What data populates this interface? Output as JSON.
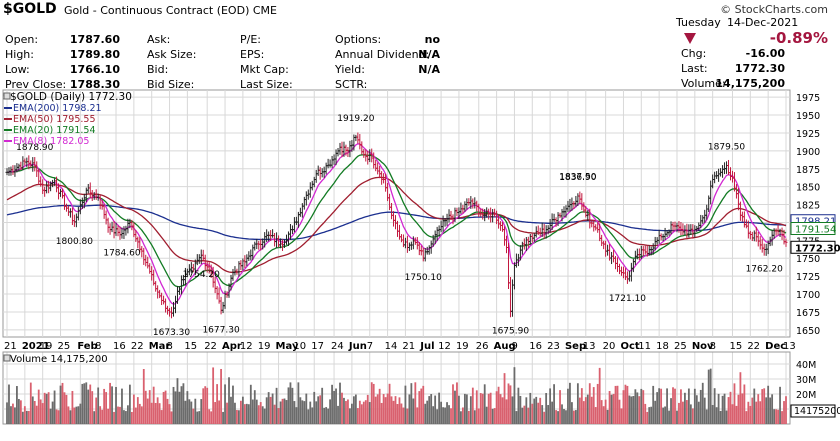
{
  "header": {
    "symbol": "$GOLD",
    "description": "Gold - Continuous Contract (EOD)",
    "exchange": "CME",
    "logo": "© StockCharts.com",
    "date_day": "Tuesday",
    "date": "14-Dec-2021",
    "change_pct": "-0.89%",
    "rows": [
      {
        "k1": "Open:",
        "v1": "1787.60",
        "k2": "Ask:",
        "v2": "",
        "k3": "P/E:",
        "v3": "",
        "k4": "Options:",
        "v4": "no",
        "k5": "Chg:",
        "v5": "-16.00"
      },
      {
        "k1": "High:",
        "v1": "1789.80",
        "k2": "Ask Size:",
        "v2": "",
        "k3": "EPS:",
        "v3": "",
        "k4": "Annual Dividend:",
        "v4": "N/A",
        "k5": "Last:",
        "v5": "1772.30"
      },
      {
        "k1": "Low:",
        "v1": "1766.10",
        "k2": "Bid:",
        "v2": "",
        "k3": "Mkt Cap:",
        "v3": "",
        "k4": "Yield:",
        "v4": "N/A",
        "k5": "Volume:",
        "v5": "14,175,200"
      },
      {
        "k1": "Prev Close:",
        "v1": "1788.30",
        "k2": "Bid Size:",
        "v2": "",
        "k3": "Last Size:",
        "v3": "",
        "k4": "SCTR:",
        "v4": "",
        "k5": "",
        "v5": ""
      }
    ]
  },
  "colors": {
    "up": "#222222",
    "down": "#c2173d",
    "ema200": "#1b2f8f",
    "ema50": "#a01e2f",
    "ema20": "#127b23",
    "ema8": "#d228d2",
    "grid": "#d8d8d8",
    "vol_up": "#6b6b6b",
    "vol_down": "#d9606e"
  },
  "chart_data": {
    "type": "line",
    "title": "$GOLD (Daily) 1772.30",
    "legend": [
      {
        "name": "EMA(200) 1798.21",
        "color": "#1b2f8f"
      },
      {
        "name": "EMA(50) 1795.55",
        "color": "#a01e2f"
      },
      {
        "name": "EMA(20) 1791.54",
        "color": "#127b23"
      },
      {
        "name": "EMA(8) 1782.05",
        "color": "#d228d2"
      }
    ],
    "y_ticks": [
      1650,
      1675,
      1700,
      1725,
      1750,
      1775,
      1800,
      1825,
      1850,
      1875,
      1900,
      1925,
      1950,
      1975
    ],
    "ylim": [
      1640,
      1985
    ],
    "x_ticks": [
      "21",
      "2021",
      "19",
      "25",
      "Feb",
      "8",
      "16",
      "22",
      "Mar",
      "8",
      "15",
      "22",
      "Apr",
      "12",
      "19",
      "May",
      "10",
      "17",
      "24",
      "Jun",
      "7",
      "14",
      "21",
      "Jul",
      "12",
      "19",
      "26",
      "Aug",
      "9",
      "16",
      "23",
      "Sep",
      "13",
      "20",
      "Oct",
      "11",
      "18",
      "25",
      "Nov",
      "8",
      "15",
      "22",
      "Dec",
      "13"
    ],
    "price_labels": [
      {
        "text": "1878.90",
        "value": 1878.9
      },
      {
        "text": "1800.80",
        "value": 1800.8
      },
      {
        "text": "1784.60",
        "value": 1784.6
      },
      {
        "text": "1754.20",
        "value": 1754.2
      },
      {
        "text": "1673.30",
        "value": 1673.3
      },
      {
        "text": "1677.30",
        "value": 1677.3
      },
      {
        "text": "1919.20",
        "value": 1919.2
      },
      {
        "text": "1750.10",
        "value": 1750.1
      },
      {
        "text": "1837.50",
        "value": 1837.5
      },
      {
        "text": "1675.90",
        "value": 1675.9
      },
      {
        "text": "1836.90",
        "value": 1836.9
      },
      {
        "text": "1721.10",
        "value": 1721.1
      },
      {
        "text": "1879.50",
        "value": 1879.5
      },
      {
        "text": "1762.20",
        "value": 1762.2
      }
    ],
    "right_labels": [
      {
        "text": "1798.21",
        "value": 1798.21,
        "color": "#1b2f8f"
      },
      {
        "text": "1791.54",
        "value": 1791.54,
        "color": "#127b23"
      },
      {
        "text": "1772.30",
        "value": 1772.3,
        "color": "#000000"
      }
    ],
    "close_anchors": [
      {
        "x": 0,
        "y": 1870
      },
      {
        "x": 10,
        "y": 1885
      },
      {
        "x": 14,
        "y": 1878.9
      },
      {
        "x": 18,
        "y": 1845
      },
      {
        "x": 24,
        "y": 1858
      },
      {
        "x": 30,
        "y": 1820
      },
      {
        "x": 34,
        "y": 1800.8
      },
      {
        "x": 40,
        "y": 1845
      },
      {
        "x": 46,
        "y": 1835
      },
      {
        "x": 52,
        "y": 1790
      },
      {
        "x": 58,
        "y": 1784.6
      },
      {
        "x": 62,
        "y": 1800
      },
      {
        "x": 68,
        "y": 1760
      },
      {
        "x": 74,
        "y": 1715
      },
      {
        "x": 80,
        "y": 1680
      },
      {
        "x": 83,
        "y": 1673.3
      },
      {
        "x": 88,
        "y": 1720
      },
      {
        "x": 94,
        "y": 1735
      },
      {
        "x": 98,
        "y": 1754.2
      },
      {
        "x": 103,
        "y": 1730
      },
      {
        "x": 108,
        "y": 1677.3
      },
      {
        "x": 114,
        "y": 1730
      },
      {
        "x": 120,
        "y": 1745
      },
      {
        "x": 126,
        "y": 1770
      },
      {
        "x": 132,
        "y": 1782
      },
      {
        "x": 138,
        "y": 1770
      },
      {
        "x": 144,
        "y": 1790
      },
      {
        "x": 150,
        "y": 1832
      },
      {
        "x": 156,
        "y": 1868
      },
      {
        "x": 162,
        "y": 1880
      },
      {
        "x": 168,
        "y": 1905
      },
      {
        "x": 172,
        "y": 1900
      },
      {
        "x": 176,
        "y": 1919.2
      },
      {
        "x": 180,
        "y": 1895
      },
      {
        "x": 184,
        "y": 1890
      },
      {
        "x": 190,
        "y": 1860
      },
      {
        "x": 194,
        "y": 1810
      },
      {
        "x": 198,
        "y": 1780
      },
      {
        "x": 202,
        "y": 1765
      },
      {
        "x": 206,
        "y": 1772
      },
      {
        "x": 210,
        "y": 1750.1
      },
      {
        "x": 214,
        "y": 1770
      },
      {
        "x": 218,
        "y": 1790
      },
      {
        "x": 222,
        "y": 1805
      },
      {
        "x": 228,
        "y": 1815
      },
      {
        "x": 234,
        "y": 1830
      },
      {
        "x": 240,
        "y": 1810
      },
      {
        "x": 246,
        "y": 1812
      },
      {
        "x": 250,
        "y": 1790
      },
      {
        "x": 252,
        "y": 1765
      },
      {
        "x": 254,
        "y": 1675.9
      },
      {
        "x": 256,
        "y": 1740
      },
      {
        "x": 260,
        "y": 1770
      },
      {
        "x": 266,
        "y": 1782
      },
      {
        "x": 272,
        "y": 1790
      },
      {
        "x": 278,
        "y": 1810
      },
      {
        "x": 284,
        "y": 1825
      },
      {
        "x": 288,
        "y": 1836.9
      },
      {
        "x": 292,
        "y": 1810
      },
      {
        "x": 298,
        "y": 1790
      },
      {
        "x": 302,
        "y": 1760
      },
      {
        "x": 306,
        "y": 1750
      },
      {
        "x": 310,
        "y": 1730
      },
      {
        "x": 313,
        "y": 1721.1
      },
      {
        "x": 318,
        "y": 1755
      },
      {
        "x": 324,
        "y": 1762
      },
      {
        "x": 330,
        "y": 1780
      },
      {
        "x": 336,
        "y": 1795
      },
      {
        "x": 340,
        "y": 1790
      },
      {
        "x": 346,
        "y": 1785
      },
      {
        "x": 352,
        "y": 1810
      },
      {
        "x": 356,
        "y": 1860
      },
      {
        "x": 360,
        "y": 1870
      },
      {
        "x": 363,
        "y": 1879.5
      },
      {
        "x": 366,
        "y": 1862
      },
      {
        "x": 370,
        "y": 1810
      },
      {
        "x": 374,
        "y": 1785
      },
      {
        "x": 378,
        "y": 1780
      },
      {
        "x": 382,
        "y": 1762.2
      },
      {
        "x": 386,
        "y": 1782
      },
      {
        "x": 390,
        "y": 1788
      },
      {
        "x": 393,
        "y": 1772.3
      }
    ],
    "volume": {
      "title": "Volume 14,175,200",
      "y_ticks": [
        "10M",
        "20M",
        "30M",
        "40M"
      ],
      "ylim_millions": [
        0,
        48
      ],
      "last_label": "14175200"
    }
  }
}
